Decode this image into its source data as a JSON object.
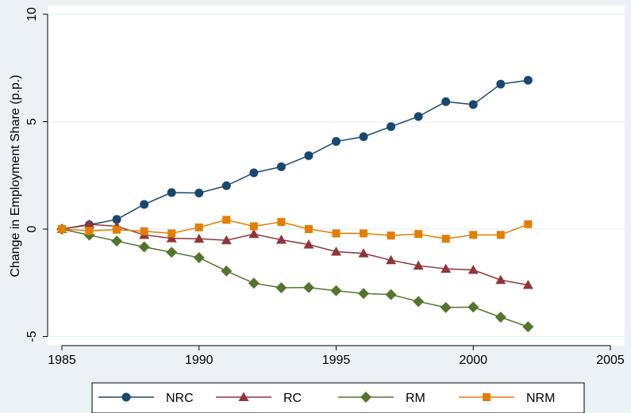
{
  "chart_data": {
    "type": "line",
    "title": "",
    "xlabel": "",
    "ylabel": "Change in Employment Share (p.p.)",
    "xlim": [
      1985,
      2005
    ],
    "ylim": [
      -5,
      10
    ],
    "xticks": [
      "1985",
      "1990",
      "1995",
      "2000",
      "2005"
    ],
    "yticks": [
      "-5",
      "0",
      "5",
      "10"
    ],
    "grid": "horizontal",
    "legend_position": "bottom",
    "x": [
      1985,
      1986,
      1987,
      1988,
      1989,
      1990,
      1991,
      1992,
      1993,
      1994,
      1995,
      1996,
      1997,
      1998,
      1999,
      2000,
      2001,
      2002
    ],
    "series": [
      {
        "name": "NRC",
        "color": "#1a476f",
        "marker": "circle",
        "values": [
          0,
          0.2,
          0.45,
          1.15,
          1.7,
          1.68,
          2.02,
          2.62,
          2.9,
          3.42,
          4.08,
          4.3,
          4.77,
          5.24,
          5.93,
          5.8,
          6.75,
          6.93
        ]
      },
      {
        "name": "RC",
        "color": "#90353b",
        "marker": "triangle",
        "values": [
          0,
          0.22,
          0.13,
          -0.27,
          -0.43,
          -0.45,
          -0.52,
          -0.23,
          -0.5,
          -0.72,
          -1.05,
          -1.13,
          -1.45,
          -1.7,
          -1.85,
          -1.9,
          -2.37,
          -2.6
        ]
      },
      {
        "name": "RM",
        "color": "#55752f",
        "marker": "diamond",
        "values": [
          0,
          -0.28,
          -0.56,
          -0.83,
          -1.08,
          -1.33,
          -1.95,
          -2.52,
          -2.73,
          -2.72,
          -2.87,
          -3.0,
          -3.05,
          -3.37,
          -3.65,
          -3.63,
          -4.1,
          -4.55
        ]
      },
      {
        "name": "NRM",
        "color": "#e37e00",
        "marker": "square",
        "values": [
          0,
          -0.08,
          -0.03,
          -0.1,
          -0.2,
          0.08,
          0.43,
          0.13,
          0.33,
          0.0,
          -0.2,
          -0.2,
          -0.3,
          -0.23,
          -0.45,
          -0.27,
          -0.27,
          0.23
        ]
      }
    ]
  }
}
